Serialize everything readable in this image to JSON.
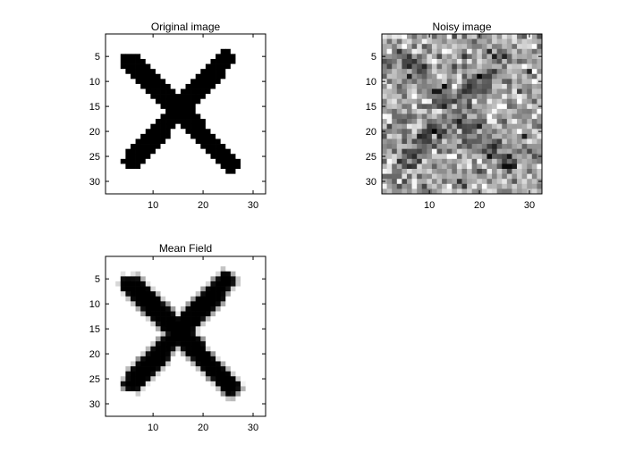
{
  "figure": {
    "background": "#ffffff",
    "axis_color": "#000000"
  },
  "chart_data": [
    {
      "type": "heatmap",
      "title": "Original image",
      "colormap": "gray",
      "xlim": [
        0.5,
        32.5
      ],
      "ylim": [
        0.5,
        32.5
      ],
      "y_reversed": true,
      "xticks": [
        10,
        20,
        30
      ],
      "yticks": [
        5,
        10,
        15,
        20,
        25,
        30
      ],
      "xtick_labels": [
        "10",
        "20",
        "30"
      ],
      "ytick_labels": [
        "5",
        "10",
        "15",
        "20",
        "25",
        "30"
      ],
      "grid": false,
      "image": {
        "size": [
          32,
          32
        ],
        "description": "binary 0/1 image of a thick X",
        "stroke_a": {
          "from": [
            5.5,
            6
          ],
          "to": [
            25.5,
            26.5
          ],
          "half_width": 2.0
        },
        "stroke_b": {
          "from": [
            24.5,
            5.5
          ],
          "to": [
            5.8,
            26
          ],
          "half_width": 2.0
        },
        "ink_value": 0,
        "paper_value": 1
      }
    },
    {
      "type": "heatmap",
      "title": "Noisy image",
      "colormap": "gray",
      "xlim": [
        0.5,
        32.5
      ],
      "ylim": [
        0.5,
        32.5
      ],
      "y_reversed": true,
      "xticks": [
        10,
        20,
        30
      ],
      "yticks": [
        5,
        10,
        15,
        20,
        25,
        30
      ],
      "xtick_labels": [
        "10",
        "20",
        "30"
      ],
      "ytick_labels": [
        "5",
        "10",
        "15",
        "20",
        "25",
        "30"
      ],
      "grid": false,
      "image": {
        "size": [
          32,
          32
        ],
        "description": "original X image plus gaussian noise",
        "base": "original",
        "noise_sd": 0.18,
        "ink_level": 0.4,
        "paper_level": 0.65,
        "seed": 7
      }
    },
    {
      "type": "heatmap",
      "title": "Mean Field",
      "colormap": "gray",
      "xlim": [
        0.5,
        32.5
      ],
      "ylim": [
        0.5,
        32.5
      ],
      "y_reversed": true,
      "xticks": [
        10,
        20,
        30
      ],
      "yticks": [
        5,
        10,
        15,
        20,
        25,
        30
      ],
      "xtick_labels": [
        "10",
        "20",
        "30"
      ],
      "ytick_labels": [
        "5",
        "10",
        "15",
        "20",
        "25",
        "30"
      ],
      "grid": false,
      "image": {
        "size": [
          32,
          32
        ],
        "description": "mean-field denoised X, near-binary with soft grey edge pixels",
        "base": "original",
        "edge_softening": true,
        "seed": 11
      }
    }
  ]
}
